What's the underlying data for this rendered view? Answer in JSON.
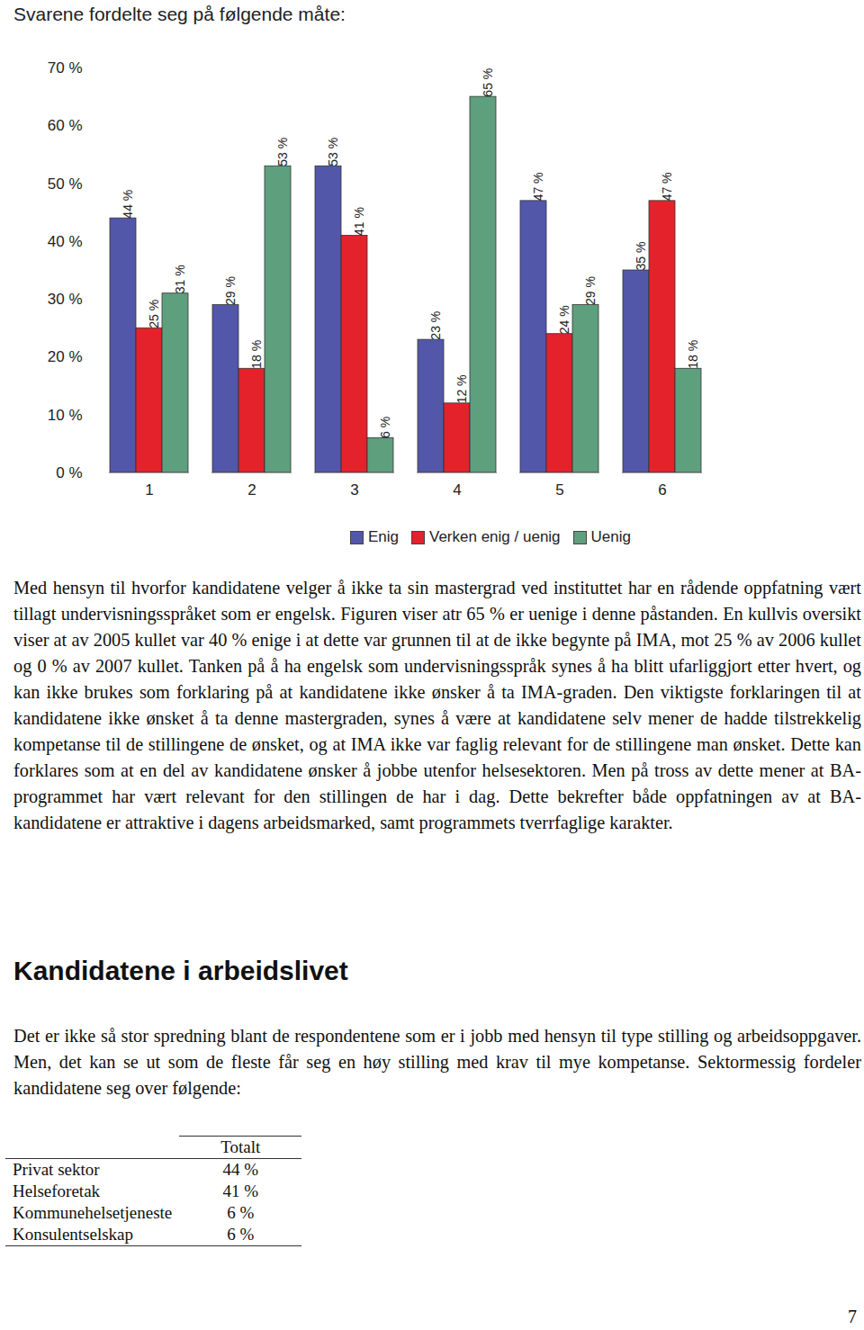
{
  "intro": "Svarene fordelte seg på følgende måte:",
  "chart_data": {
    "type": "bar",
    "categories": [
      "1",
      "2",
      "3",
      "4",
      "5",
      "6"
    ],
    "series": [
      {
        "name": "Enig",
        "color": "#5257aa",
        "values": [
          44,
          29,
          53,
          23,
          47,
          35
        ],
        "value_labels": [
          "44 %",
          "29 %",
          "53 %",
          "23 %",
          "47 %",
          "35 %"
        ]
      },
      {
        "name": "Verken enig / uenig",
        "color": "#e3222b",
        "values": [
          25,
          18,
          41,
          12,
          24,
          47
        ],
        "value_labels": [
          "25 %",
          "18 %",
          "41 %",
          "12 %",
          "24 %",
          "47 %"
        ]
      },
      {
        "name": "Uenig",
        "color": "#5e9f7e",
        "values": [
          31,
          53,
          6,
          65,
          29,
          18
        ],
        "value_labels": [
          "31 %",
          "53 %",
          "6 %",
          "65 %",
          "29 %",
          "18 %"
        ]
      }
    ],
    "ylim": [
      0,
      70
    ],
    "yticks": [
      {
        "value": 0,
        "label": "0 %"
      },
      {
        "value": 10,
        "label": "10 %"
      },
      {
        "value": 20,
        "label": "20 %"
      },
      {
        "value": 30,
        "label": "30 %"
      },
      {
        "value": 40,
        "label": "40 %"
      },
      {
        "value": 50,
        "label": "50 %"
      },
      {
        "value": 60,
        "label": "60 %"
      },
      {
        "value": 70,
        "label": "70 %"
      }
    ],
    "grid": false,
    "legend": "bottom",
    "data_labels": true
  },
  "paragraphs": [
    "Med hensyn til hvorfor kandidatene velger å ikke ta sin mastergrad ved instituttet har en rådende oppfatning vært tillagt undervisningsspråket som er engelsk. Figuren viser atr 65 % er uenige i denne påstanden. En kullvis oversikt viser at av 2005 kullet var 40 % enige i at dette var grunnen til at de ikke begynte på IMA, mot 25 % av 2006 kullet og 0 % av 2007 kullet. Tanken på å ha engelsk som undervisningsspråk synes å ha blitt ufarliggjort etter hvert, og kan ikke brukes som forklaring på at kandidatene ikke ønsker å ta IMA-graden. Den viktigste forklaringen til at kandidatene ikke ønsket å ta denne mastergraden, synes å være at kandidatene selv mener de hadde tilstrekkelig kompetanse til de stillingene de ønsket, og at IMA ikke var faglig relevant for de stillingene man ønsket. Dette kan forklares som at en del av kandidatene ønsker å jobbe utenfor helsesektoren. Men på tross av dette mener at BA-programmet har vært relevant for den stillingen de har i dag. Dette bekrefter både oppfatningen av at BA-kandidatene er attraktive i dagens arbeidsmarked, samt programmets tverrfaglige karakter.",
    "Det er ikke så stor spredning blant de respondentene som er i jobb med hensyn til type stilling og arbeidsoppgaver. Men, det kan se ut som de fleste får seg en høy stilling med krav til mye kompetanse. Sektormessig fordeler kandidatene seg over følgende:"
  ],
  "heading": "Kandidatene i arbeidslivet",
  "table": {
    "header": [
      "",
      "Totalt"
    ],
    "rows": [
      [
        "Privat sektor",
        "44 %"
      ],
      [
        "Helseforetak",
        "41 %"
      ],
      [
        "Kommunehelsetjeneste",
        "6 %"
      ],
      [
        "Konsulentselskap",
        "6 %"
      ]
    ]
  },
  "page_number": "7"
}
